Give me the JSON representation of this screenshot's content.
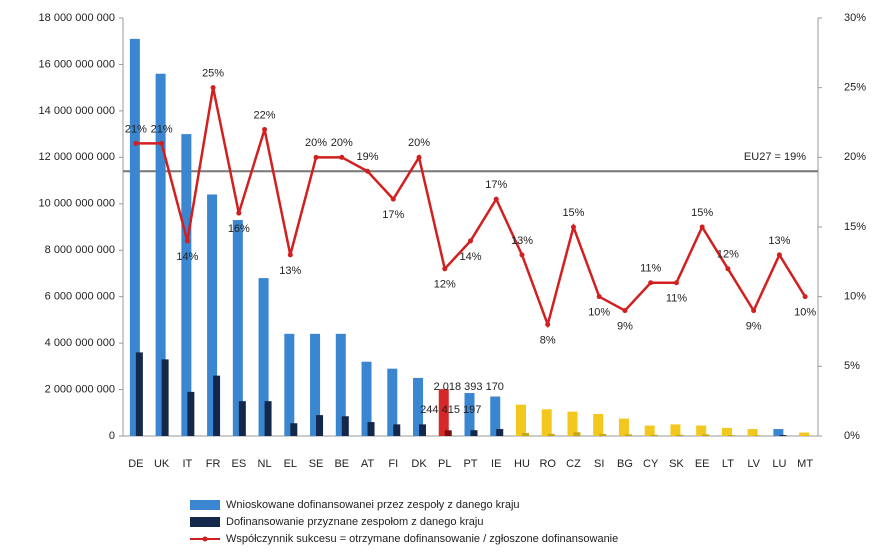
{
  "chart_data": {
    "type": "bar",
    "categories": [
      "DE",
      "UK",
      "IT",
      "FR",
      "ES",
      "NL",
      "EL",
      "SE",
      "BE",
      "AT",
      "FI",
      "DK",
      "PL",
      "PT",
      "IE",
      "HU",
      "RO",
      "CZ",
      "SI",
      "BG",
      "CY",
      "SK",
      "EE",
      "LT",
      "LV",
      "LU",
      "MT"
    ],
    "ylim": [
      0,
      18000000000
    ],
    "yticks": [
      0,
      {
        "value": 2000000000,
        "label": "2 000 000 000"
      },
      {
        "value": 4000000000,
        "label": "4 000 000 000"
      },
      {
        "value": 6000000000,
        "label": "6 000 000 000"
      },
      {
        "value": 8000000000,
        "label": "8 000 000 000"
      },
      {
        "value": 10000000000,
        "label": "10 000 000 000"
      },
      {
        "value": 12000000000,
        "label": "12 000 000 000"
      },
      {
        "value": 14000000000,
        "label": "14 000 000 000"
      },
      {
        "value": 16000000000,
        "label": "16 000 000 000"
      },
      {
        "value": 18000000000,
        "label": "18 000 000 000"
      }
    ],
    "y2lim": [
      0,
      30
    ],
    "y2ticks": [
      {
        "value": 0,
        "label": "0%"
      },
      {
        "value": 5,
        "label": "5%"
      },
      {
        "value": 10,
        "label": "10%"
      },
      {
        "value": 15,
        "label": "15%"
      },
      {
        "value": 20,
        "label": "20%"
      },
      {
        "value": 25,
        "label": "25%"
      },
      {
        "value": 30,
        "label": "30%"
      }
    ],
    "reference_line": {
      "value": 19,
      "label": "EU27 = 19%",
      "axis": "y2",
      "color": "#777777"
    },
    "series": [
      {
        "name": "Wnioskowane dofinansowanei przez zespoły z danego kraju",
        "color": "#3a86d0",
        "colors": [
          "#3a86d0",
          "#3a86d0",
          "#3a86d0",
          "#3a86d0",
          "#3a86d0",
          "#3a86d0",
          "#3a86d0",
          "#3a86d0",
          "#3a86d0",
          "#3a86d0",
          "#3a86d0",
          "#3a86d0",
          "#d62828",
          "#3a86d0",
          "#3a86d0",
          "#f2c81e",
          "#f2c81e",
          "#f2c81e",
          "#f2c81e",
          "#f2c81e",
          "#f2c81e",
          "#f2c81e",
          "#f2c81e",
          "#f2c81e",
          "#f2c81e",
          "#3a86d0",
          "#f2c81e"
        ],
        "values": [
          17100000000,
          15600000000,
          13000000000,
          10400000000,
          9300000000,
          6800000000,
          4400000000,
          4400000000,
          4400000000,
          3200000000,
          2900000000,
          2500000000,
          2018393170,
          1850000000,
          1700000000,
          1350000000,
          1150000000,
          1050000000,
          950000000,
          750000000,
          450000000,
          500000000,
          450000000,
          350000000,
          300000000,
          300000000,
          150000000
        ],
        "value_labels": [
          null,
          null,
          null,
          null,
          null,
          null,
          null,
          null,
          null,
          null,
          null,
          null,
          "2 018 393 170",
          null,
          null,
          null,
          null,
          null,
          null,
          null,
          null,
          null,
          null,
          null,
          null,
          null,
          null
        ]
      },
      {
        "name": "Dofinansowanie przyznane zespołom z danego kraju",
        "color": "#14284b",
        "colors": [
          "#14284b",
          "#14284b",
          "#14284b",
          "#14284b",
          "#14284b",
          "#14284b",
          "#14284b",
          "#14284b",
          "#14284b",
          "#14284b",
          "#14284b",
          "#14284b",
          "#7a1010",
          "#14284b",
          "#14284b",
          "#c9a714",
          "#c9a714",
          "#c9a714",
          "#c9a714",
          "#c9a714",
          "#c9a714",
          "#c9a714",
          "#c9a714",
          "#c9a714",
          "#c9a714",
          "#14284b",
          "#c9a714"
        ],
        "values": [
          3600000000,
          3300000000,
          1900000000,
          2600000000,
          1500000000,
          1500000000,
          550000000,
          900000000,
          850000000,
          600000000,
          500000000,
          500000000,
          244415197,
          250000000,
          300000000,
          130000000,
          90000000,
          160000000,
          90000000,
          70000000,
          50000000,
          50000000,
          70000000,
          40000000,
          30000000,
          40000000,
          15000000
        ],
        "value_labels": [
          null,
          null,
          null,
          null,
          null,
          null,
          null,
          null,
          null,
          null,
          null,
          null,
          "244 415 197",
          null,
          null,
          null,
          null,
          null,
          null,
          null,
          null,
          null,
          null,
          null,
          null,
          null,
          null
        ]
      },
      {
        "name": "Współczynnik sukcesu = otrzymane dofinansowanie / zgłoszone dofinansowanie",
        "color": "#d21f1f",
        "type": "line",
        "axis": "y2",
        "values": [
          21,
          21,
          14,
          25,
          16,
          22,
          13,
          20,
          20,
          19,
          17,
          20,
          12,
          14,
          17,
          13,
          8,
          15,
          10,
          9,
          11,
          11,
          15,
          12,
          9,
          13,
          10
        ],
        "value_labels": [
          "21%",
          "21%",
          "14%",
          "25%",
          "16%",
          "22%",
          "13%",
          "20%",
          "20%",
          "19%",
          "17%",
          "20%",
          "12%",
          "14%",
          "17%",
          "13%",
          "8%",
          "15%",
          "10%",
          "9%",
          "11%",
          "11%",
          "15%",
          "12%",
          "9%",
          "13%",
          "10%"
        ]
      }
    ]
  }
}
